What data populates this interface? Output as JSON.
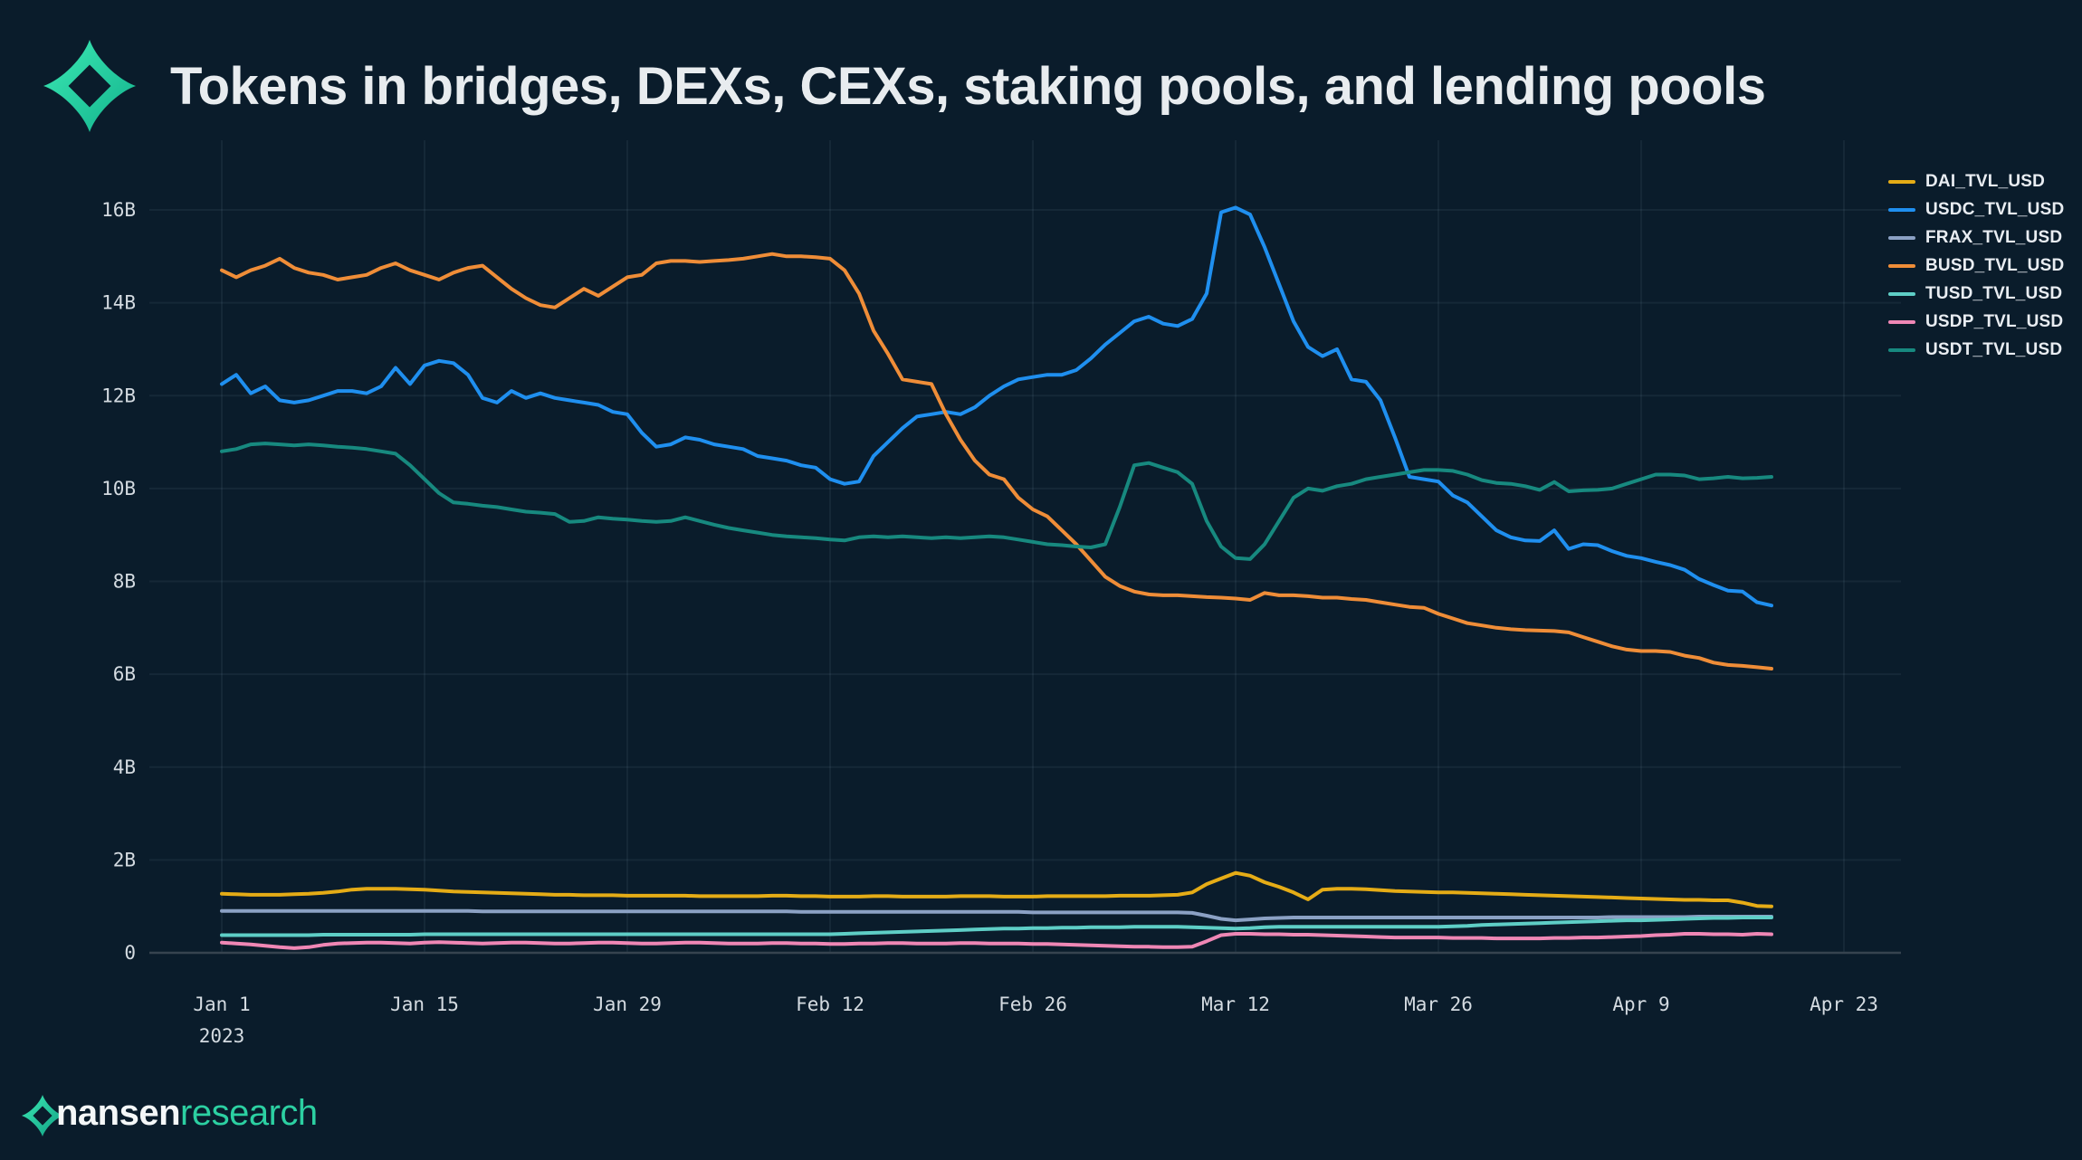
{
  "header": {
    "title": "Tokens in bridges, DEXs, CEXs, staking pools, and lending pools"
  },
  "footer": {
    "brand": "nansen",
    "brand_suffix": "research"
  },
  "colors": {
    "background": "#0a1c2b",
    "title_text": "#e8ecef",
    "axis_text": "#d4dbe1",
    "grid_line": "rgba(170,195,220,0.07)",
    "zero_line": "#36434f",
    "brand_green_light": "#3ce9b4",
    "brand_green_dark": "#12b28c"
  },
  "chart_data": {
    "type": "line",
    "title": "Tokens in bridges, DEXs, CEXs, staking pools, and lending pools",
    "xlabel": "",
    "ylabel": "",
    "unit": "USD (billions)",
    "grid": true,
    "legend_position": "top-right",
    "ylim": [
      0,
      17
    ],
    "x_total_days": 112,
    "x_ticks": [
      {
        "label": "Jan 1",
        "sub": "2023",
        "day": 0
      },
      {
        "label": "Jan 15",
        "day": 14
      },
      {
        "label": "Jan 29",
        "day": 28
      },
      {
        "label": "Feb 12",
        "day": 42
      },
      {
        "label": "Feb 26",
        "day": 56
      },
      {
        "label": "Mar 12",
        "day": 70
      },
      {
        "label": "Mar 26",
        "day": 84
      },
      {
        "label": "Apr 9",
        "day": 98
      },
      {
        "label": "Apr 23",
        "day": 112
      }
    ],
    "y_ticks": [
      {
        "label": "0",
        "value": 0
      },
      {
        "label": "2B",
        "value": 2
      },
      {
        "label": "4B",
        "value": 4
      },
      {
        "label": "6B",
        "value": 6
      },
      {
        "label": "8B",
        "value": 8
      },
      {
        "label": "10B",
        "value": 10
      },
      {
        "label": "12B",
        "value": 12
      },
      {
        "label": "14B",
        "value": 14
      },
      {
        "label": "16B",
        "value": 16
      }
    ],
    "series": [
      {
        "name": "DAI_TVL_USD",
        "color": "#e5ac16",
        "values": [
          1.27,
          1.26,
          1.25,
          1.25,
          1.25,
          1.26,
          1.27,
          1.29,
          1.32,
          1.36,
          1.38,
          1.38,
          1.38,
          1.37,
          1.36,
          1.34,
          1.32,
          1.31,
          1.3,
          1.29,
          1.28,
          1.27,
          1.26,
          1.25,
          1.25,
          1.24,
          1.24,
          1.24,
          1.23,
          1.23,
          1.23,
          1.23,
          1.23,
          1.22,
          1.22,
          1.22,
          1.22,
          1.22,
          1.23,
          1.23,
          1.22,
          1.22,
          1.21,
          1.21,
          1.21,
          1.22,
          1.22,
          1.21,
          1.21,
          1.21,
          1.21,
          1.22,
          1.22,
          1.22,
          1.21,
          1.21,
          1.21,
          1.22,
          1.22,
          1.22,
          1.22,
          1.22,
          1.23,
          1.23,
          1.23,
          1.24,
          1.25,
          1.3,
          1.48,
          1.6,
          1.72,
          1.66,
          1.52,
          1.42,
          1.3,
          1.15,
          1.36,
          1.38,
          1.38,
          1.37,
          1.35,
          1.33,
          1.32,
          1.31,
          1.3,
          1.3,
          1.29,
          1.28,
          1.27,
          1.26,
          1.25,
          1.24,
          1.23,
          1.22,
          1.21,
          1.2,
          1.19,
          1.18,
          1.17,
          1.16,
          1.15,
          1.14,
          1.14,
          1.13,
          1.13,
          1.08,
          1.01,
          1.0
        ]
      },
      {
        "name": "USDC_TVL_USD",
        "color": "#1f8fef",
        "values": [
          12.25,
          12.45,
          12.05,
          12.2,
          11.9,
          11.85,
          11.9,
          12.0,
          12.1,
          12.1,
          12.05,
          12.2,
          12.6,
          12.25,
          12.65,
          12.75,
          12.7,
          12.45,
          11.95,
          11.85,
          12.1,
          11.95,
          12.05,
          11.95,
          11.9,
          11.85,
          11.8,
          11.65,
          11.6,
          11.2,
          10.9,
          10.95,
          11.1,
          11.05,
          10.95,
          10.9,
          10.85,
          10.7,
          10.65,
          10.6,
          10.5,
          10.45,
          10.2,
          10.1,
          10.15,
          10.7,
          11.0,
          11.3,
          11.55,
          11.6,
          11.65,
          11.6,
          11.75,
          12.0,
          12.2,
          12.35,
          12.4,
          12.45,
          12.45,
          12.55,
          12.8,
          13.1,
          13.35,
          13.6,
          13.7,
          13.55,
          13.5,
          13.65,
          14.2,
          15.95,
          16.05,
          15.9,
          15.2,
          14.4,
          13.6,
          13.05,
          12.85,
          13.0,
          12.35,
          12.3,
          11.9,
          11.1,
          10.25,
          10.2,
          10.15,
          9.85,
          9.7,
          9.4,
          9.1,
          8.95,
          8.88,
          8.87,
          9.1,
          8.7,
          8.8,
          8.78,
          8.65,
          8.55,
          8.5,
          8.42,
          8.35,
          8.25,
          8.05,
          7.92,
          7.8,
          7.78,
          7.55,
          7.48
        ]
      },
      {
        "name": "FRAX_TVL_USD",
        "color": "#8ba1c4",
        "values": [
          0.9,
          0.9,
          0.9,
          0.9,
          0.9,
          0.9,
          0.9,
          0.9,
          0.9,
          0.9,
          0.9,
          0.9,
          0.9,
          0.9,
          0.9,
          0.9,
          0.9,
          0.9,
          0.89,
          0.89,
          0.89,
          0.89,
          0.89,
          0.89,
          0.89,
          0.89,
          0.89,
          0.89,
          0.89,
          0.89,
          0.89,
          0.89,
          0.89,
          0.89,
          0.89,
          0.89,
          0.89,
          0.89,
          0.89,
          0.89,
          0.88,
          0.88,
          0.88,
          0.88,
          0.88,
          0.88,
          0.88,
          0.88,
          0.88,
          0.88,
          0.88,
          0.88,
          0.88,
          0.88,
          0.88,
          0.88,
          0.87,
          0.87,
          0.87,
          0.87,
          0.87,
          0.87,
          0.87,
          0.87,
          0.87,
          0.87,
          0.87,
          0.86,
          0.8,
          0.73,
          0.7,
          0.72,
          0.74,
          0.75,
          0.76,
          0.76,
          0.76,
          0.76,
          0.76,
          0.76,
          0.76,
          0.76,
          0.76,
          0.76,
          0.76,
          0.76,
          0.76,
          0.76,
          0.76,
          0.76,
          0.76,
          0.76,
          0.76,
          0.76,
          0.76,
          0.76,
          0.77,
          0.77,
          0.77,
          0.77,
          0.77,
          0.77,
          0.78,
          0.78,
          0.78,
          0.78,
          0.78,
          0.78
        ]
      },
      {
        "name": "BUSD_TVL_USD",
        "color": "#ef8d38",
        "values": [
          14.7,
          14.55,
          14.7,
          14.8,
          14.95,
          14.75,
          14.65,
          14.6,
          14.5,
          14.55,
          14.6,
          14.75,
          14.85,
          14.7,
          14.6,
          14.5,
          14.65,
          14.75,
          14.8,
          14.55,
          14.3,
          14.1,
          13.95,
          13.9,
          14.1,
          14.3,
          14.15,
          14.35,
          14.55,
          14.6,
          14.85,
          14.9,
          14.9,
          14.88,
          14.9,
          14.92,
          14.95,
          15.0,
          15.05,
          15.0,
          15.0,
          14.98,
          14.95,
          14.7,
          14.2,
          13.4,
          12.9,
          12.35,
          12.3,
          12.25,
          11.6,
          11.05,
          10.6,
          10.3,
          10.2,
          9.8,
          9.55,
          9.4,
          9.1,
          8.8,
          8.45,
          8.1,
          7.9,
          7.78,
          7.72,
          7.7,
          7.7,
          7.68,
          7.66,
          7.65,
          7.63,
          7.6,
          7.75,
          7.7,
          7.7,
          7.68,
          7.65,
          7.65,
          7.62,
          7.6,
          7.55,
          7.5,
          7.45,
          7.43,
          7.3,
          7.2,
          7.1,
          7.05,
          7.0,
          6.97,
          6.95,
          6.94,
          6.93,
          6.9,
          6.8,
          6.7,
          6.6,
          6.53,
          6.5,
          6.5,
          6.48,
          6.4,
          6.35,
          6.25,
          6.2,
          6.18,
          6.15,
          6.12
        ]
      },
      {
        "name": "TUSD_TVL_USD",
        "color": "#5ecec6",
        "values": [
          0.38,
          0.38,
          0.38,
          0.38,
          0.38,
          0.38,
          0.38,
          0.39,
          0.39,
          0.39,
          0.39,
          0.39,
          0.39,
          0.39,
          0.4,
          0.4,
          0.4,
          0.4,
          0.4,
          0.4,
          0.4,
          0.4,
          0.4,
          0.4,
          0.4,
          0.4,
          0.4,
          0.4,
          0.4,
          0.4,
          0.4,
          0.4,
          0.4,
          0.4,
          0.4,
          0.4,
          0.4,
          0.4,
          0.4,
          0.4,
          0.4,
          0.4,
          0.4,
          0.41,
          0.42,
          0.43,
          0.44,
          0.45,
          0.46,
          0.47,
          0.48,
          0.49,
          0.5,
          0.51,
          0.52,
          0.52,
          0.53,
          0.53,
          0.54,
          0.54,
          0.55,
          0.55,
          0.55,
          0.56,
          0.56,
          0.56,
          0.56,
          0.55,
          0.54,
          0.53,
          0.52,
          0.53,
          0.55,
          0.56,
          0.56,
          0.56,
          0.56,
          0.56,
          0.56,
          0.56,
          0.56,
          0.56,
          0.56,
          0.56,
          0.56,
          0.57,
          0.58,
          0.6,
          0.61,
          0.62,
          0.63,
          0.64,
          0.65,
          0.66,
          0.67,
          0.68,
          0.69,
          0.7,
          0.7,
          0.71,
          0.72,
          0.73,
          0.74,
          0.75,
          0.75,
          0.76,
          0.76,
          0.76
        ]
      },
      {
        "name": "USDP_TVL_USD",
        "color": "#ef87b5",
        "values": [
          0.22,
          0.2,
          0.18,
          0.15,
          0.12,
          0.1,
          0.12,
          0.17,
          0.2,
          0.21,
          0.22,
          0.22,
          0.21,
          0.2,
          0.22,
          0.23,
          0.22,
          0.21,
          0.2,
          0.21,
          0.22,
          0.22,
          0.21,
          0.2,
          0.2,
          0.21,
          0.22,
          0.22,
          0.21,
          0.2,
          0.2,
          0.21,
          0.22,
          0.22,
          0.21,
          0.2,
          0.2,
          0.2,
          0.21,
          0.21,
          0.2,
          0.2,
          0.19,
          0.19,
          0.2,
          0.2,
          0.21,
          0.21,
          0.2,
          0.2,
          0.2,
          0.21,
          0.21,
          0.2,
          0.2,
          0.2,
          0.19,
          0.19,
          0.18,
          0.17,
          0.16,
          0.15,
          0.14,
          0.13,
          0.13,
          0.12,
          0.12,
          0.13,
          0.25,
          0.38,
          0.41,
          0.41,
          0.4,
          0.4,
          0.39,
          0.39,
          0.38,
          0.37,
          0.36,
          0.35,
          0.34,
          0.33,
          0.33,
          0.33,
          0.33,
          0.32,
          0.32,
          0.32,
          0.31,
          0.31,
          0.31,
          0.31,
          0.32,
          0.32,
          0.33,
          0.33,
          0.34,
          0.35,
          0.36,
          0.38,
          0.39,
          0.41,
          0.41,
          0.4,
          0.4,
          0.39,
          0.41,
          0.4
        ]
      },
      {
        "name": "USDT_TVL_USD",
        "color": "#17897f",
        "values": [
          10.8,
          10.85,
          10.95,
          10.97,
          10.95,
          10.93,
          10.95,
          10.93,
          10.9,
          10.88,
          10.85,
          10.8,
          10.75,
          10.5,
          10.2,
          9.9,
          9.7,
          9.67,
          9.63,
          9.6,
          9.55,
          9.5,
          9.48,
          9.45,
          9.28,
          9.3,
          9.38,
          9.35,
          9.33,
          9.3,
          9.28,
          9.3,
          9.38,
          9.3,
          9.22,
          9.15,
          9.1,
          9.05,
          9.0,
          8.97,
          8.95,
          8.93,
          8.9,
          8.88,
          8.95,
          8.97,
          8.95,
          8.97,
          8.95,
          8.93,
          8.95,
          8.93,
          8.95,
          8.97,
          8.95,
          8.9,
          8.85,
          8.8,
          8.78,
          8.75,
          8.73,
          8.8,
          9.6,
          10.5,
          10.55,
          10.45,
          10.35,
          10.1,
          9.3,
          8.75,
          8.5,
          8.48,
          8.8,
          9.3,
          9.8,
          10.0,
          9.95,
          10.05,
          10.1,
          10.2,
          10.25,
          10.3,
          10.35,
          10.4,
          10.4,
          10.38,
          10.3,
          10.18,
          10.12,
          10.1,
          10.05,
          9.97,
          10.14,
          9.94,
          9.96,
          9.97,
          10.0,
          10.1,
          10.2,
          10.3,
          10.3,
          10.28,
          10.2,
          10.22,
          10.25,
          10.22,
          10.23,
          10.25
        ]
      }
    ]
  }
}
